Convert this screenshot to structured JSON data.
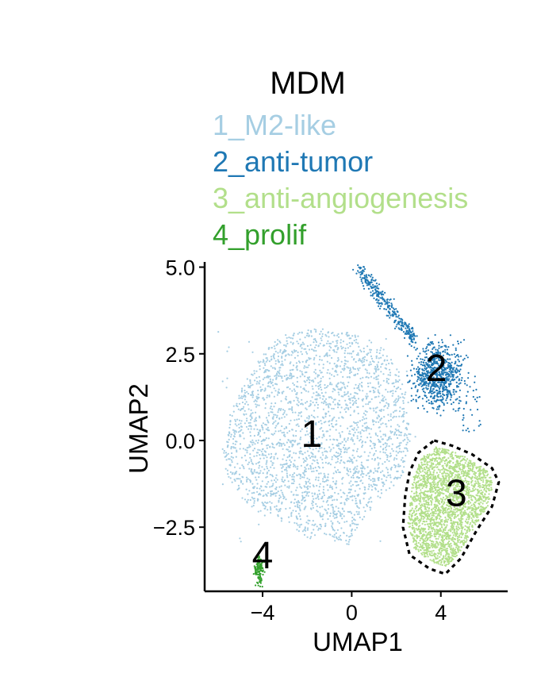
{
  "chart_data": {
    "type": "scatter",
    "title": "MDM",
    "xlabel": "UMAP1",
    "ylabel": "UMAP2",
    "xlim": [
      -6.6,
      7.0
    ],
    "ylim": [
      -4.35,
      5.15
    ],
    "xticks": [
      -4,
      0,
      4
    ],
    "yticks": [
      5.0,
      2.5,
      0.0,
      -2.5
    ],
    "xtick_labels": [
      "−4",
      "0",
      "4"
    ],
    "ytick_labels": [
      "5.0",
      "2.5",
      "0.0",
      "−2.5"
    ],
    "grid": false,
    "legend_position": "top",
    "series": [
      {
        "name": "1_M2-like",
        "color": "#a6cee3",
        "label": "1",
        "label_at": [
          -1.8,
          0.2
        ]
      },
      {
        "name": "2_anti-tumor",
        "color": "#1f78b4",
        "label": "2",
        "label_at": [
          3.8,
          2.1
        ]
      },
      {
        "name": "3_anti-angiogenesis",
        "color": "#b2df8a",
        "label": "3",
        "label_at": [
          4.7,
          -1.5
        ]
      },
      {
        "name": "4_prolif",
        "color": "#33a02c",
        "label": "4",
        "label_at": [
          -4.0,
          -3.3
        ]
      }
    ],
    "annotations": [
      {
        "type": "dashed-outline",
        "around": "3_anti-angiogenesis",
        "path": [
          [
            3.7,
            0.0
          ],
          [
            4.5,
            -0.15
          ],
          [
            5.4,
            -0.4
          ],
          [
            6.3,
            -0.8
          ],
          [
            6.6,
            -1.2
          ],
          [
            6.3,
            -1.9
          ],
          [
            5.6,
            -2.6
          ],
          [
            4.9,
            -3.4
          ],
          [
            4.2,
            -3.85
          ],
          [
            3.5,
            -3.7
          ],
          [
            2.6,
            -3.3
          ],
          [
            2.3,
            -2.5
          ],
          [
            2.4,
            -1.6
          ],
          [
            2.6,
            -0.9
          ],
          [
            3.0,
            -0.35
          ]
        ]
      }
    ]
  }
}
